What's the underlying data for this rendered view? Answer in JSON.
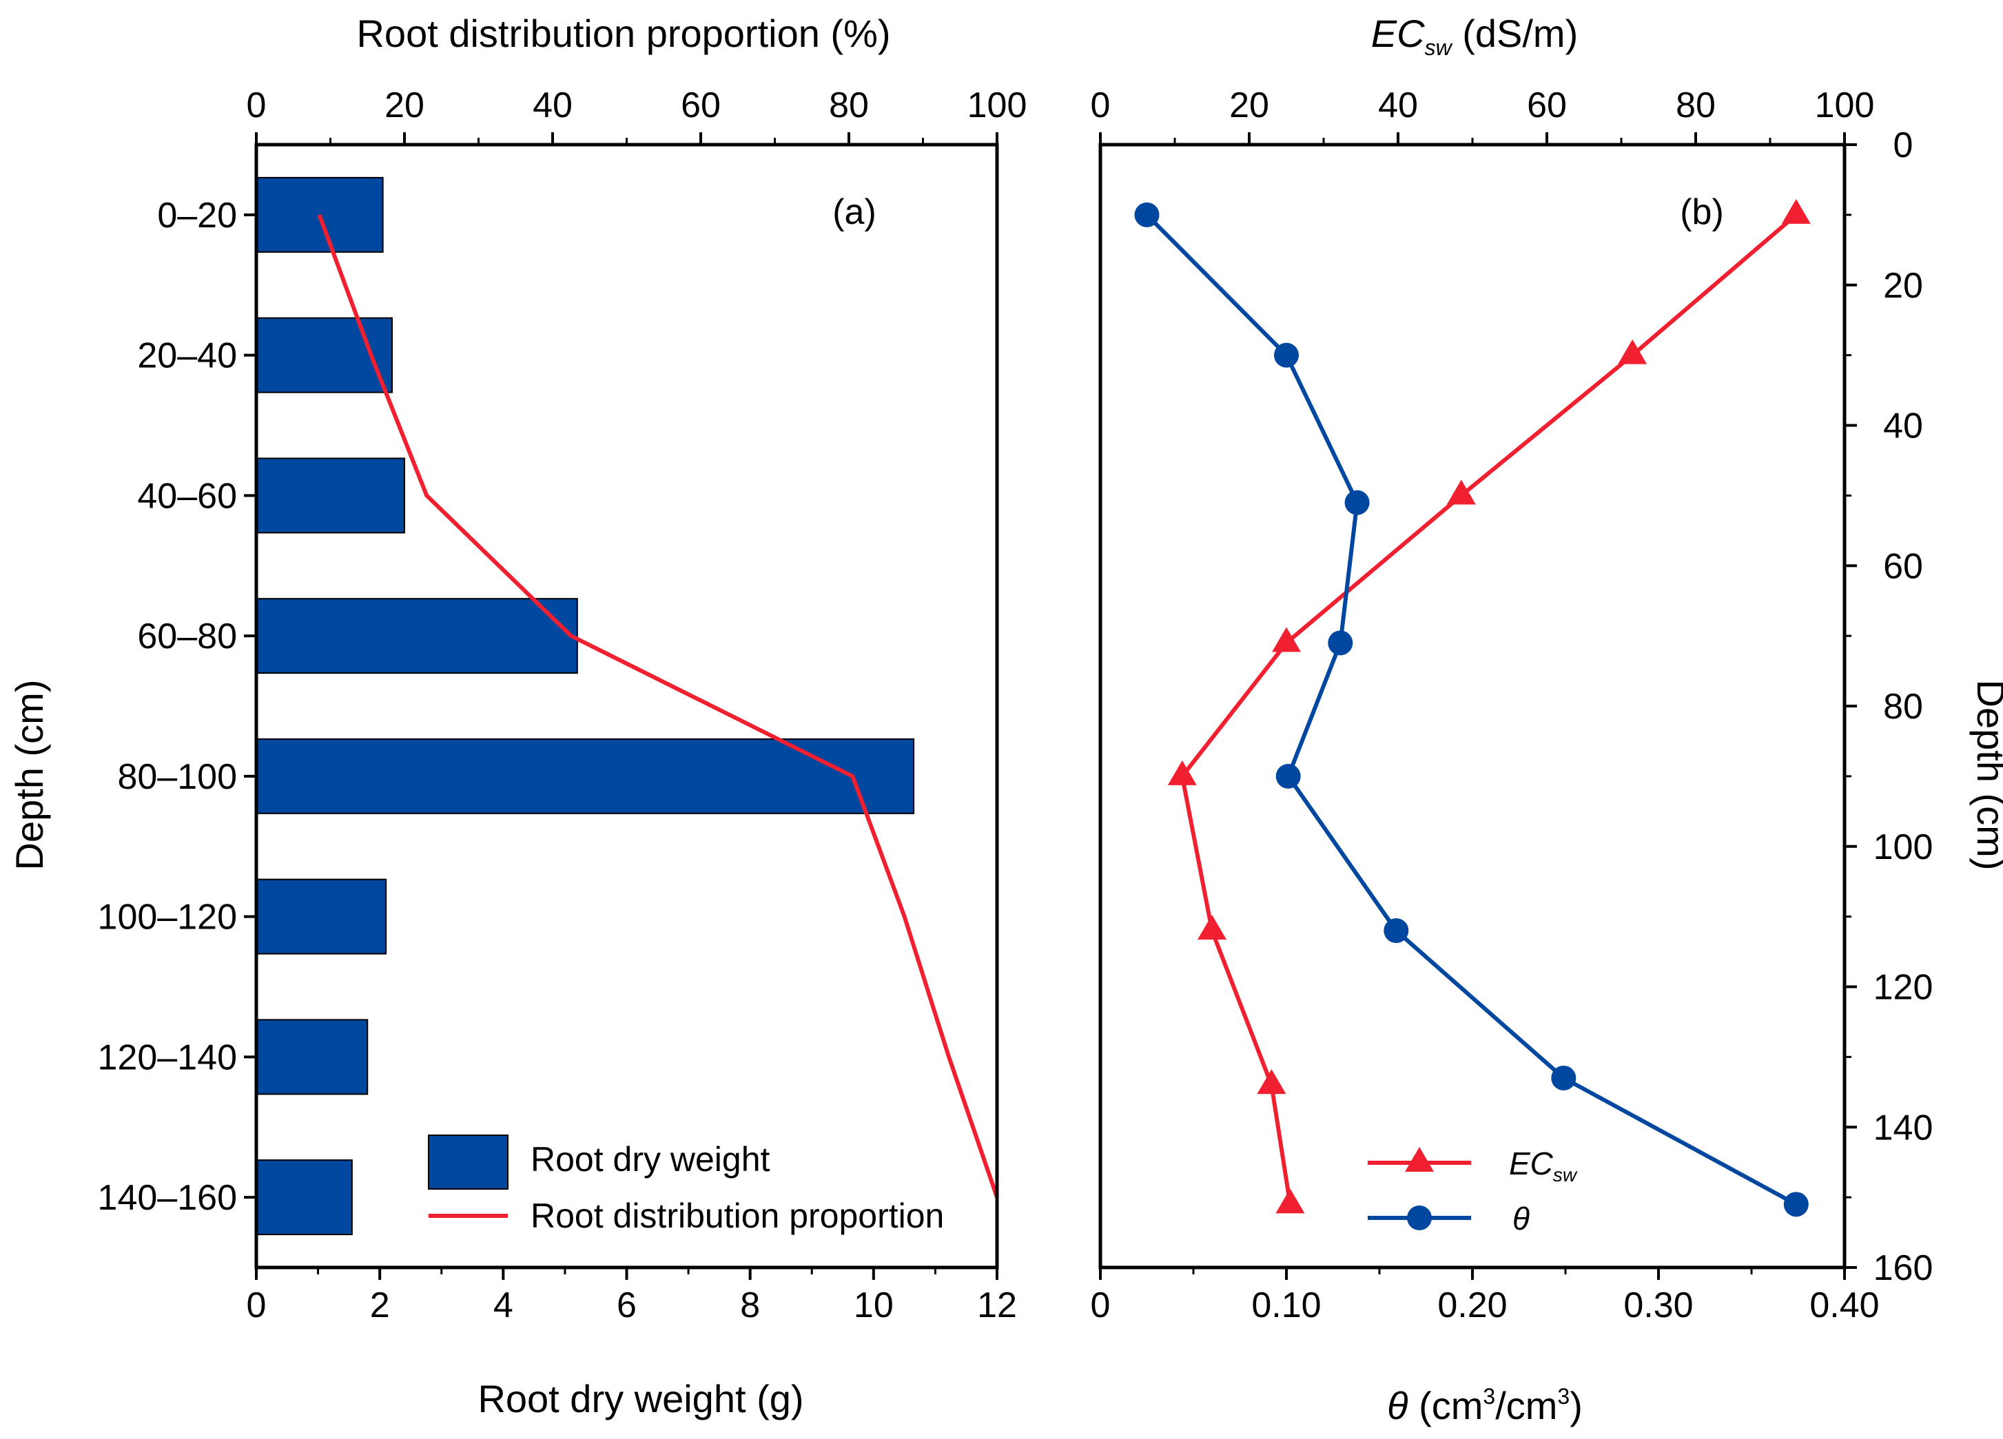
{
  "chart_data": [
    {
      "panel_label": "(a)",
      "type": "bar",
      "orientation": "horizontal",
      "categories": [
        "0–20",
        "20–40",
        "40–60",
        "60–80",
        "80–100",
        "100–120",
        "120–140",
        "140–160"
      ],
      "ylabel": "Depth (cm)",
      "xlabel_bottom": "Root dry weight (g)",
      "xlabel_top": "Root distribution proportion (%)",
      "xlim_bottom": [
        0,
        12
      ],
      "xticks_bottom": [
        "0",
        "2",
        "4",
        "6",
        "8",
        "10",
        "12"
      ],
      "xlim_top": [
        0,
        100
      ],
      "xticks_top": [
        "0",
        "20",
        "40",
        "60",
        "80",
        "100"
      ],
      "series": [
        {
          "name": "Root dry weight",
          "axis": "bottom",
          "kind": "bar",
          "color": "#0047a0",
          "values": [
            2.05,
            2.2,
            2.4,
            5.2,
            10.65,
            2.1,
            1.8,
            1.55
          ]
        },
        {
          "name": "Root distribution proportion",
          "axis": "top",
          "kind": "line",
          "color": "#f02030",
          "values": [
            8.5,
            15.5,
            23,
            42.5,
            80.5,
            87.5,
            93.5,
            100
          ]
        }
      ],
      "legend": {
        "position": "bottom-right",
        "entries": [
          "Root dry weight",
          "Root distribution proportion"
        ]
      }
    },
    {
      "panel_label": "(b)",
      "type": "line",
      "ylabel_right": "Depth (cm)",
      "ylim": [
        0,
        160
      ],
      "yticks": [
        "0",
        "20",
        "40",
        "60",
        "80",
        "100",
        "120",
        "140",
        "160"
      ],
      "xlabel_top_main": "EC",
      "xlabel_top_sub": "sw",
      "xlabel_top_unit": " (dS/m)",
      "xlim_top": [
        0,
        100
      ],
      "xticks_top": [
        "0",
        "20",
        "40",
        "60",
        "80",
        "100"
      ],
      "xlabel_bottom_main": "θ",
      "xlabel_bottom_unit_a": " (cm",
      "xlabel_bottom_sup_a": "3",
      "xlabel_bottom_unit_b": "/cm",
      "xlabel_bottom_sup_b": "3",
      "xlabel_bottom_unit_c": ")",
      "xlim_bottom": [
        0,
        0.4
      ],
      "xticks_bottom": [
        "0",
        "0.10",
        "0.20",
        "0.30",
        "0.40"
      ],
      "series": [
        {
          "name": "EC",
          "name_sub": "sw",
          "axis": "top",
          "marker": "triangle",
          "color": "#f02030",
          "x": [
            93.5,
            71.5,
            48.5,
            25,
            11,
            15,
            23,
            25.5
          ],
          "y": [
            10,
            30,
            50,
            71,
            90,
            112,
            134,
            151
          ]
        },
        {
          "name": "θ",
          "axis": "bottom",
          "marker": "circle",
          "color": "#0047a0",
          "x": [
            0.025,
            0.1,
            0.138,
            0.129,
            0.101,
            0.159,
            0.249,
            0.374
          ],
          "y": [
            10,
            30,
            51,
            71,
            90,
            112,
            133,
            151
          ]
        }
      ],
      "legend": {
        "position": "bottom-center"
      }
    }
  ]
}
